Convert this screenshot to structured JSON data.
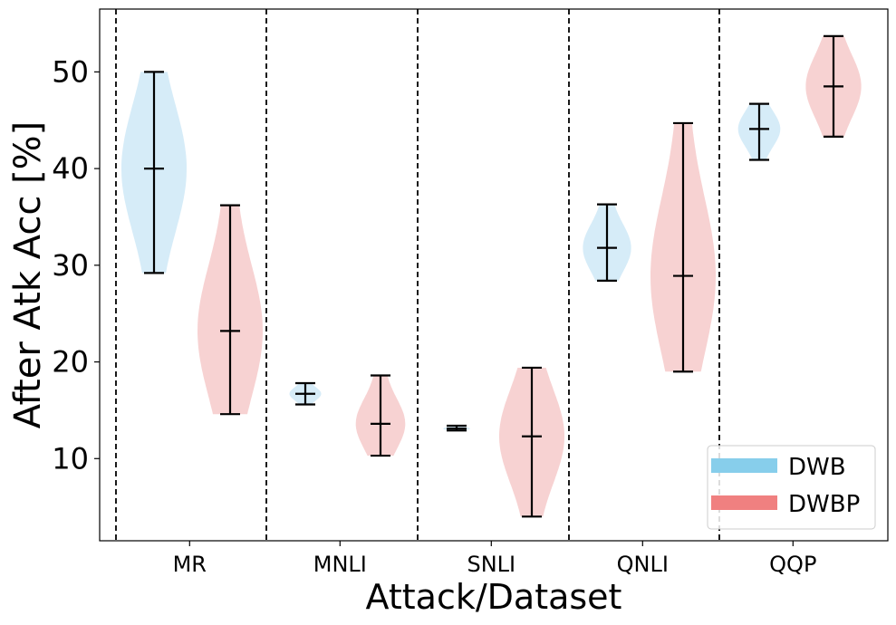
{
  "chart_data": {
    "type": "violin",
    "xlabel": "Attack/Dataset",
    "ylabel": "After Atk Acc [%]",
    "ylim": [
      1.5,
      56.5
    ],
    "yticks": [
      10,
      20,
      30,
      40,
      50
    ],
    "categories": [
      "MR",
      "MNLI",
      "SNLI",
      "QNLI",
      "QQP"
    ],
    "grid": false,
    "legend_position": "lower-right",
    "series": [
      {
        "name": "DWB",
        "color": "#87ceeb",
        "fill": "#d6ecf8",
        "stats": [
          {
            "min": 29.2,
            "median": 40.0,
            "max": 50.0
          },
          {
            "min": 15.6,
            "median": 16.7,
            "max": 17.8
          },
          {
            "min": 12.9,
            "median": 13.1,
            "max": 13.4
          },
          {
            "min": 28.4,
            "median": 31.8,
            "max": 36.3
          },
          {
            "min": 40.9,
            "median": 44.1,
            "max": 46.7
          }
        ]
      },
      {
        "name": "DWBP",
        "color": "#f08080",
        "fill": "#f7d2d2",
        "stats": [
          {
            "min": 14.6,
            "median": 23.2,
            "max": 36.2
          },
          {
            "min": 10.3,
            "median": 13.6,
            "max": 18.6
          },
          {
            "min": 4.0,
            "median": 12.3,
            "max": 19.4
          },
          {
            "min": 19.0,
            "median": 28.9,
            "max": 44.7
          },
          {
            "min": 43.3,
            "median": 48.5,
            "max": 53.7
          }
        ]
      }
    ]
  }
}
